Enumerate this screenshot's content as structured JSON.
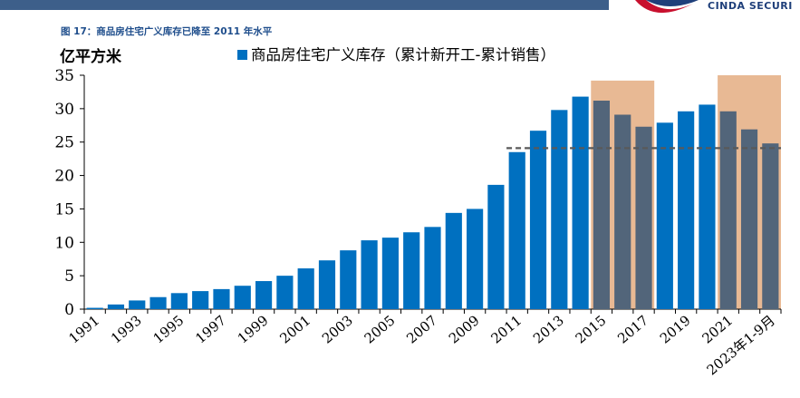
{
  "header": {
    "figure_title": "图 17：商品房住宅广义库存已降至 2011 年水平",
    "logo_text": "CINDA SECURI"
  },
  "chart_data": {
    "type": "bar",
    "title": "图 17：商品房住宅广义库存已降至 2011 年水平",
    "ylabel": "亿平方米",
    "xlabel": "",
    "ylim": [
      0,
      35
    ],
    "yticks": [
      0,
      5,
      10,
      15,
      20,
      25,
      30,
      35
    ],
    "legend": "top",
    "series": [
      {
        "name": "商品房住宅广义库存（累计新开工-累计销售）",
        "color": "#0070c0",
        "shaded_color": "#52657a",
        "values": [
          0.2,
          0.7,
          1.3,
          1.8,
          2.4,
          2.7,
          3.0,
          3.5,
          4.2,
          5.0,
          6.1,
          7.3,
          8.8,
          10.3,
          10.7,
          11.5,
          12.3,
          14.4,
          15.0,
          18.6,
          23.5,
          26.7,
          29.8,
          31.8,
          31.2,
          29.1,
          27.3,
          27.9,
          29.6,
          30.6,
          29.6,
          26.9,
          24.8
        ]
      }
    ],
    "categories": [
      "1991",
      "1992",
      "1993",
      "1994",
      "1995",
      "1996",
      "1997",
      "1998",
      "1999",
      "2000",
      "2001",
      "2002",
      "2003",
      "2004",
      "2005",
      "2006",
      "2007",
      "2008",
      "2009",
      "2010",
      "2011",
      "2012",
      "2013",
      "2014",
      "2015",
      "2016",
      "2017",
      "2018",
      "2019",
      "2020",
      "2021",
      "2022",
      "2023年1-9月"
    ],
    "tick_labels": [
      "1991",
      "1993",
      "1995",
      "1997",
      "1999",
      "2001",
      "2003",
      "2005",
      "2007",
      "2009",
      "2011",
      "2013",
      "2015",
      "2017",
      "2019",
      "2021",
      "2023年1-9月"
    ],
    "shaded_ranges": [
      {
        "from": "2015",
        "to": "2017",
        "top": 34.2
      },
      {
        "from": "2021",
        "to": "2023年1-9月",
        "top": 35
      }
    ],
    "reference_line": {
      "value": 24.1,
      "from": "2011",
      "to": "2023年1-9月",
      "style": "dashed",
      "color": "#595959"
    },
    "shade_color": "#e8b994"
  }
}
